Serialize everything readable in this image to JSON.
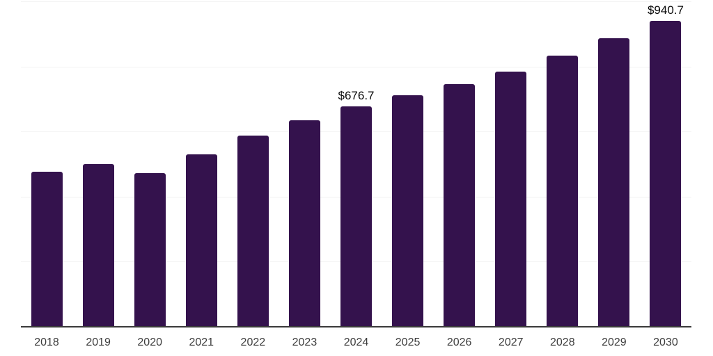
{
  "chart": {
    "background_color": "#ffffff",
    "bar_color": "#34124d",
    "axis_line_color": "#3a3a3a",
    "gridline_color": "#f2f2f2",
    "tick_label_color": "#3d3d3d",
    "data_label_color": "#0a0a0a"
  },
  "chart_data": {
    "type": "bar",
    "title": "",
    "xlabel": "",
    "ylabel": "",
    "categories": [
      "2018",
      "2019",
      "2020",
      "2021",
      "2022",
      "2023",
      "2024",
      "2025",
      "2026",
      "2027",
      "2028",
      "2029",
      "2030"
    ],
    "values": [
      477,
      500,
      472,
      530,
      587,
      634,
      676.7,
      711,
      745,
      785,
      833,
      886,
      940.7
    ],
    "data_labels": [
      {
        "category": "2024",
        "text": "$676.7"
      },
      {
        "category": "2030",
        "text": "$940.7"
      }
    ],
    "ylim": [
      0,
      1000
    ],
    "gridline_values": [
      200,
      400,
      600,
      800,
      1000
    ],
    "grid": "horizontal",
    "legend_position": "none"
  }
}
